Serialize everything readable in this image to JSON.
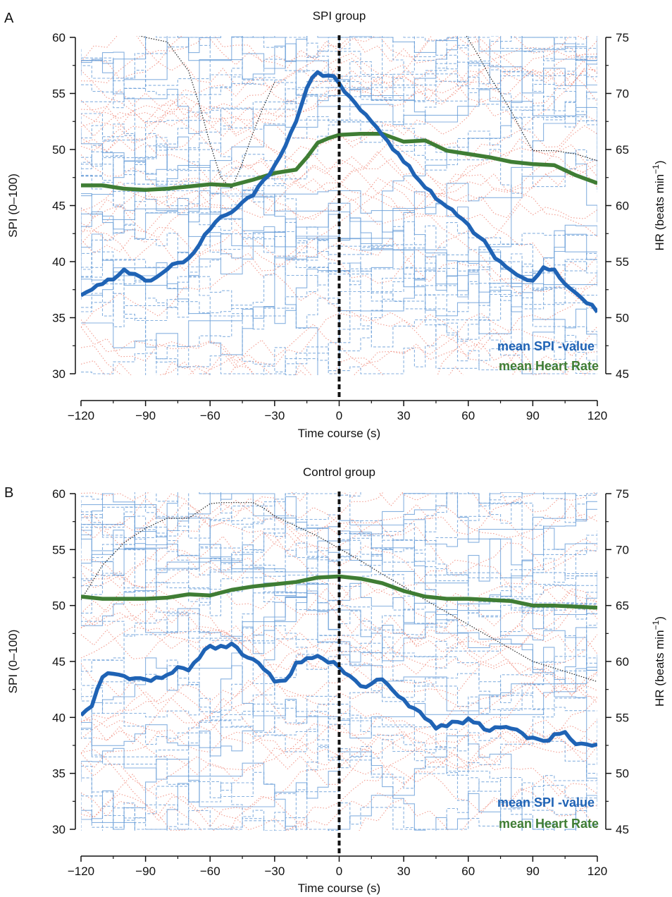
{
  "colors": {
    "mean_spi": "#1f63b5",
    "mean_hr": "#3f7d34",
    "individual_spi": "#6a9fd8",
    "individual_hr": "#f08a7a",
    "event_marker": "#111111",
    "example_trace": "#222222"
  },
  "chart_data": [
    {
      "type": "line",
      "panel_letter": "A",
      "title": "SPI group",
      "xlabel": "Time course (s)",
      "ylabel": "SPI (0–100)",
      "y2label_main": "HR (beats min",
      "y2label_sup": "−1",
      "y2label_end": ")",
      "xlim": [
        -120,
        120
      ],
      "ylim": [
        30,
        60
      ],
      "y2lim": [
        45,
        75
      ],
      "x_ticks": [
        "−120",
        "−90",
        "−60",
        "−30",
        "0",
        "30",
        "60",
        "90",
        "120"
      ],
      "y_ticks": [
        "30",
        "35",
        "40",
        "45",
        "50",
        "55",
        "60"
      ],
      "y2_ticks": [
        "45",
        "50",
        "55",
        "60",
        "65",
        "70",
        "75"
      ],
      "event_x": 0,
      "legend": {
        "spi": "mean SPI -value",
        "hr": "mean Heart Rate"
      },
      "series": [
        {
          "name": "mean SPI -value",
          "axis": "left",
          "x": [
            -120,
            -115,
            -110,
            -105,
            -100,
            -95,
            -90,
            -85,
            -80,
            -75,
            -70,
            -65,
            -60,
            -55,
            -50,
            -45,
            -40,
            -35,
            -30,
            -25,
            -20,
            -15,
            -10,
            -5,
            0,
            5,
            10,
            15,
            20,
            25,
            30,
            35,
            40,
            45,
            50,
            55,
            60,
            65,
            70,
            75,
            80,
            85,
            90,
            95,
            100,
            105,
            110,
            115,
            120
          ],
          "y": [
            37.0,
            37.5,
            38.0,
            38.4,
            39.3,
            38.9,
            38.3,
            38.6,
            39.3,
            39.9,
            40.3,
            41.5,
            42.9,
            44.0,
            44.4,
            45.3,
            45.9,
            47.3,
            48.6,
            50.3,
            52.5,
            55.5,
            56.9,
            56.6,
            55.9,
            54.7,
            53.5,
            52.5,
            51.3,
            50.0,
            48.9,
            47.7,
            46.6,
            45.6,
            44.9,
            44.1,
            43.3,
            42.2,
            41.1,
            40.0,
            39.2,
            38.6,
            38.3,
            39.5,
            39.3,
            38.0,
            37.2,
            36.3,
            35.5
          ]
        },
        {
          "name": "mean Heart Rate",
          "axis": "right",
          "x": [
            -120,
            -110,
            -100,
            -90,
            -80,
            -70,
            -60,
            -50,
            -40,
            -30,
            -20,
            -15,
            -10,
            -5,
            0,
            10,
            20,
            30,
            40,
            50,
            60,
            70,
            80,
            90,
            100,
            110,
            120
          ],
          "y": [
            61.8,
            61.8,
            61.5,
            61.4,
            61.5,
            61.7,
            61.9,
            61.8,
            62.3,
            62.9,
            63.2,
            64.3,
            65.6,
            66.0,
            66.3,
            66.4,
            66.4,
            65.7,
            65.8,
            64.9,
            64.6,
            64.3,
            63.9,
            63.7,
            63.6,
            62.7,
            62.0
          ]
        },
        {
          "name": "",
          "axis": "right",
          "style": "example-dotted",
          "x": [
            -110,
            -100,
            -90,
            -80,
            -70,
            -65,
            -60,
            -55,
            -50,
            -45,
            -40,
            -35,
            -30
          ],
          "y": [
            75.5,
            75.5,
            75.0,
            74.6,
            72.0,
            69.0,
            65.5,
            62.5,
            61.5,
            63.8,
            66.5,
            68.9,
            71.0
          ]
        },
        {
          "name": "",
          "axis": "right",
          "style": "example-dotted",
          "x": [
            58,
            65,
            70,
            75,
            80,
            85,
            90,
            95,
            100,
            110,
            120
          ],
          "y": [
            75.5,
            73.3,
            71.5,
            70.0,
            68.4,
            66.6,
            64.9,
            64.9,
            64.9,
            64.6,
            64.0
          ]
        }
      ]
    },
    {
      "type": "line",
      "panel_letter": "B",
      "title": "Control group",
      "xlabel": "Time course (s)",
      "ylabel": "SPI (0–100)",
      "y2label_main": "HR (beats min",
      "y2label_sup": "−1",
      "y2label_end": ")",
      "xlim": [
        -120,
        120
      ],
      "ylim": [
        30,
        60
      ],
      "y2lim": [
        45,
        75
      ],
      "x_ticks": [
        "−120",
        "−90",
        "−60",
        "−30",
        "0",
        "30",
        "60",
        "90",
        "120"
      ],
      "y_ticks": [
        "30",
        "35",
        "40",
        "45",
        "50",
        "55",
        "60"
      ],
      "y2_ticks": [
        "45",
        "50",
        "55",
        "60",
        "65",
        "70",
        "75"
      ],
      "event_x": 0,
      "legend": {
        "spi": "mean SPI -value",
        "hr": "mean Heart Rate"
      },
      "series": [
        {
          "name": "mean SPI -value",
          "axis": "left",
          "x": [
            -120,
            -115,
            -110,
            -105,
            -100,
            -95,
            -90,
            -85,
            -80,
            -75,
            -70,
            -65,
            -60,
            -55,
            -50,
            -45,
            -40,
            -35,
            -30,
            -25,
            -20,
            -15,
            -10,
            -5,
            0,
            5,
            10,
            15,
            20,
            25,
            30,
            35,
            40,
            45,
            50,
            55,
            60,
            65,
            70,
            75,
            80,
            85,
            90,
            95,
            100,
            105,
            110,
            115,
            120
          ],
          "y": [
            40.2,
            41.0,
            43.6,
            43.9,
            43.7,
            43.5,
            43.4,
            43.6,
            43.8,
            44.5,
            44.2,
            45.3,
            46.4,
            46.4,
            46.6,
            45.6,
            45.2,
            44.3,
            43.2,
            43.3,
            44.9,
            45.3,
            45.5,
            44.9,
            44.5,
            43.7,
            42.8,
            43.0,
            43.4,
            42.4,
            41.6,
            40.8,
            39.9,
            39.0,
            39.2,
            39.6,
            39.9,
            39.5,
            38.8,
            39.1,
            39.0,
            38.6,
            38.2,
            37.9,
            38.5,
            38.7,
            37.6,
            37.6,
            37.6
          ]
        },
        {
          "name": "mean Heart Rate",
          "axis": "right",
          "x": [
            -120,
            -110,
            -100,
            -90,
            -80,
            -70,
            -60,
            -50,
            -40,
            -30,
            -20,
            -10,
            0,
            10,
            20,
            30,
            40,
            50,
            60,
            70,
            80,
            90,
            100,
            110,
            120
          ],
          "y": [
            65.8,
            65.6,
            65.6,
            65.6,
            65.7,
            66.0,
            65.9,
            66.4,
            66.7,
            66.9,
            67.1,
            67.5,
            67.6,
            67.4,
            67.0,
            66.3,
            65.8,
            65.6,
            65.6,
            65.5,
            65.4,
            65.0,
            65.0,
            64.9,
            64.8
          ]
        },
        {
          "name": "",
          "axis": "right",
          "style": "example-dotted",
          "x": [
            -120,
            -110,
            -100,
            -90,
            -80,
            -70,
            -60,
            -55,
            -50,
            -40,
            -35,
            -30,
            -20,
            -10,
            0,
            10,
            20,
            30,
            40,
            50,
            60,
            70,
            80,
            90,
            100,
            110,
            120
          ],
          "y": [
            65.5,
            68.6,
            70.6,
            71.9,
            72.8,
            72.8,
            74.1,
            74.2,
            74.2,
            74.2,
            73.7,
            73.0,
            72.1,
            71.2,
            70.1,
            69.0,
            67.8,
            66.7,
            65.5,
            64.4,
            63.3,
            62.2,
            61.1,
            60.0,
            59.4,
            58.8,
            58.2
          ]
        }
      ]
    }
  ]
}
